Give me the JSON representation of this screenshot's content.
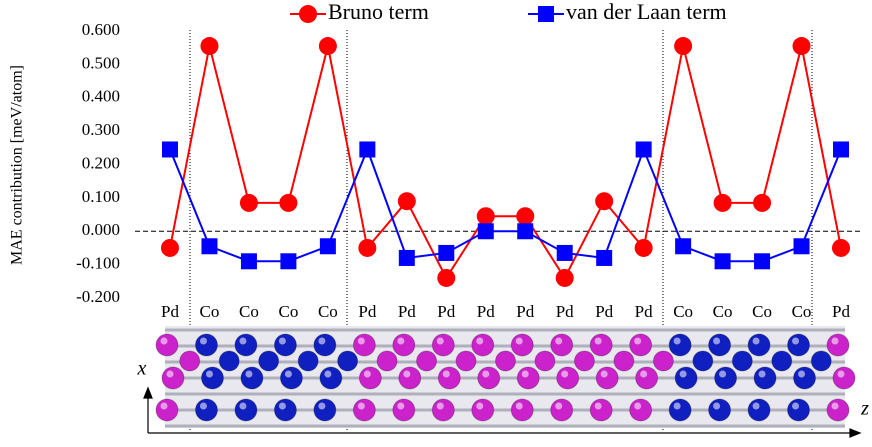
{
  "chart_data": {
    "type": "line",
    "y_label": "MAE contribution [meV/atom]",
    "categories": [
      "Pd",
      "Co",
      "Co",
      "Co",
      "Co",
      "Pd",
      "Pd",
      "Pd",
      "Pd",
      "Pd",
      "Pd",
      "Pd",
      "Pd",
      "Co",
      "Co",
      "Co",
      "Co",
      "Pd"
    ],
    "series": [
      {
        "name": "Bruno term",
        "color": "#ff0000",
        "marker": "circle",
        "values": [
          -0.05,
          0.555,
          0.085,
          0.085,
          0.555,
          -0.05,
          0.09,
          -0.14,
          0.045,
          0.045,
          -0.14,
          0.09,
          -0.05,
          0.555,
          0.085,
          0.085,
          0.555,
          -0.05
        ]
      },
      {
        "name": "van der Laan term",
        "color": "#0000ff",
        "marker": "square",
        "values": [
          0.245,
          -0.045,
          -0.09,
          -0.09,
          -0.045,
          0.245,
          -0.08,
          -0.065,
          0,
          0,
          -0.065,
          -0.08,
          0.245,
          -0.045,
          -0.09,
          -0.09,
          -0.045,
          0.245
        ]
      }
    ],
    "ylim": [
      -0.2,
      0.6
    ],
    "yticks": [
      {
        "value": -0.2,
        "label": "-0.200"
      },
      {
        "value": -0.1,
        "label": "-0.100"
      },
      {
        "value": 0,
        "label": "0.000"
      },
      {
        "value": 0.1,
        "label": "0.100"
      },
      {
        "value": 0.2,
        "label": "0.200"
      },
      {
        "value": 0.3,
        "label": "0.300"
      },
      {
        "value": 0.4,
        "label": "0.400"
      },
      {
        "value": 0.5,
        "label": "0.500"
      },
      {
        "value": 0.6,
        "label": "0.600"
      }
    ],
    "grid": false,
    "legend": "top",
    "structure_axes": {
      "x": "x",
      "z": "z"
    }
  }
}
